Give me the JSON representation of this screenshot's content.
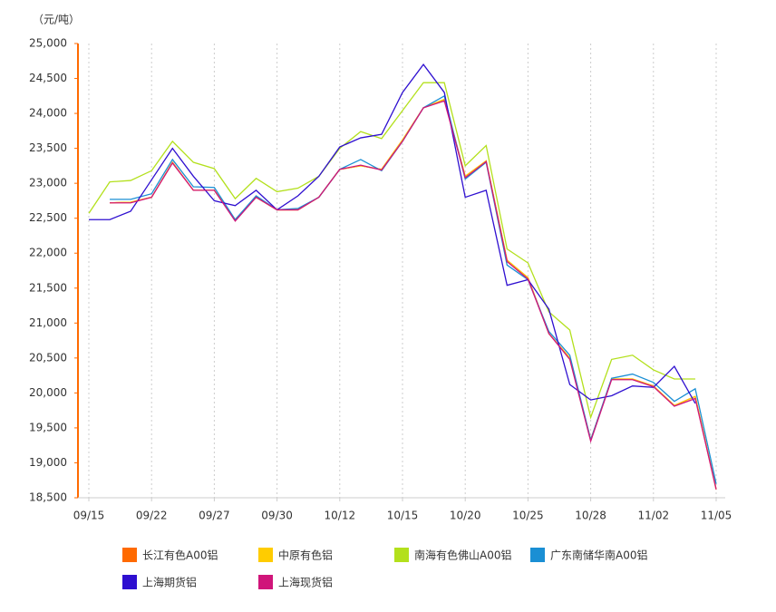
{
  "chart_data": {
    "type": "line",
    "y_label": "（元/吨）",
    "categories": [
      "09/15",
      null,
      null,
      "09/22",
      null,
      null,
      "09/27",
      null,
      null,
      "09/30",
      null,
      null,
      "10/12",
      null,
      null,
      "10/15",
      null,
      null,
      "10/20",
      null,
      null,
      "10/25",
      null,
      null,
      "10/28",
      null,
      null,
      "11/02",
      null,
      null,
      "11/05"
    ],
    "ylim": [
      18500,
      25000
    ],
    "yticks": [
      {
        "value": 18500,
        "label": "18,500"
      },
      {
        "value": 19000,
        "label": "19,000"
      },
      {
        "value": 19500,
        "label": "19,500"
      },
      {
        "value": 20000,
        "label": "20,000"
      },
      {
        "value": 20500,
        "label": "20,500"
      },
      {
        "value": 21000,
        "label": "21,000"
      },
      {
        "value": 21500,
        "label": "21,500"
      },
      {
        "value": 22000,
        "label": "22,000"
      },
      {
        "value": 22500,
        "label": "22,500"
      },
      {
        "value": 23000,
        "label": "23,000"
      },
      {
        "value": 23500,
        "label": "23,500"
      },
      {
        "value": 24000,
        "label": "24,000"
      },
      {
        "value": 24500,
        "label": "24,500"
      },
      {
        "value": 25000,
        "label": "25,000"
      }
    ],
    "grid": true,
    "legend": "bottom",
    "series": [
      {
        "name": "长江有色A00铝",
        "color": "#ff6a00",
        "values": [
          null,
          22720,
          22730,
          22800,
          23300,
          22900,
          22900,
          22480,
          22800,
          22620,
          22620,
          22800,
          23200,
          23250,
          23200,
          23620,
          24080,
          24200,
          23100,
          23320,
          21900,
          21650,
          20850,
          20500,
          19330,
          20200,
          20200,
          20100,
          19820,
          19950,
          18620
        ]
      },
      {
        "name": "中原有色铝",
        "color": "#ffcc00",
        "values": [
          null,
          22720,
          22730,
          22800,
          23300,
          22900,
          22900,
          22480,
          22800,
          22620,
          22620,
          22800,
          23200,
          23250,
          23200,
          23620,
          24080,
          24200,
          23100,
          23320,
          21900,
          21650,
          20850,
          20500,
          19330,
          20200,
          20200,
          20100,
          19820,
          19950,
          18620
        ]
      },
      {
        "name": "南海有色佛山A00铝",
        "color": "#b3e01c",
        "values": [
          22570,
          23020,
          23040,
          23180,
          23600,
          23300,
          23210,
          22780,
          23070,
          22880,
          22930,
          23100,
          23500,
          23740,
          23640,
          24040,
          24440,
          24440,
          23250,
          23540,
          22060,
          21860,
          21160,
          20900,
          19650,
          20480,
          20540,
          20330,
          20200,
          20200,
          null
        ]
      },
      {
        "name": "广东南储华南A00铝",
        "color": "#1a8fd4",
        "values": [
          null,
          22770,
          22770,
          22850,
          23340,
          22950,
          22940,
          22480,
          22820,
          22620,
          22640,
          22800,
          23200,
          23340,
          23180,
          23600,
          24080,
          24250,
          23060,
          23300,
          21830,
          21620,
          20880,
          20540,
          19330,
          20210,
          20270,
          20150,
          19880,
          20060,
          18700
        ]
      },
      {
        "name": "上海期货铝",
        "color": "#2e0fd0",
        "values": [
          22480,
          22480,
          22600,
          23050,
          23500,
          23100,
          22750,
          22680,
          22900,
          22620,
          22820,
          23100,
          23520,
          23650,
          23700,
          24300,
          24700,
          24300,
          22800,
          22900,
          21540,
          21620,
          21200,
          20120,
          19900,
          19960,
          20100,
          20080,
          20380,
          19850,
          null
        ]
      },
      {
        "name": "上海现货铝",
        "color": "#d0157a",
        "values": [
          null,
          22720,
          22720,
          22800,
          23290,
          22900,
          22900,
          22460,
          22800,
          22620,
          22620,
          22800,
          23200,
          23260,
          23190,
          23600,
          24080,
          24180,
          23080,
          23310,
          21880,
          21630,
          20850,
          20480,
          19310,
          20190,
          20190,
          20090,
          19810,
          19920,
          18620
        ]
      }
    ]
  }
}
